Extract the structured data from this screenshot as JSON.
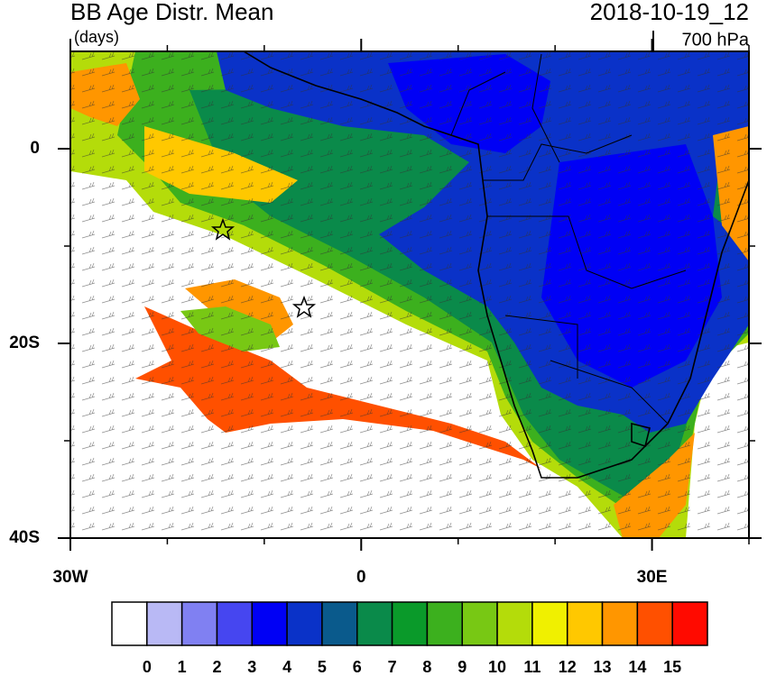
{
  "map": {
    "title": "BB Age Distr. Mean",
    "units_label": "(days)",
    "date": "2018-10-19_12",
    "level": "700 hPa",
    "xlim": [
      -30,
      40
    ],
    "ylim": [
      -40,
      10
    ],
    "xticks": [
      {
        "value": -30,
        "label": "30W"
      },
      0,
      {
        "value": 30,
        "label": "30E"
      }
    ],
    "xticks_minor": [
      -20,
      -10,
      10,
      20,
      40
    ],
    "yticks": [
      0,
      {
        "value": -20,
        "label": "20S"
      },
      {
        "value": -40,
        "label": "40S"
      }
    ],
    "yticks_minor": [
      -10,
      -30
    ],
    "colorbar": {
      "ticks": [
        0,
        1,
        2,
        3,
        4,
        5,
        6,
        7,
        8,
        9,
        10,
        11,
        12,
        13,
        14,
        15
      ],
      "colors": [
        "#ffffff",
        "#b9b9f5",
        "#8080f2",
        "#4646f0",
        "#0000f5",
        "#0a32c8",
        "#0a5a8c",
        "#0a8a4a",
        "#0a9a2a",
        "#3cb01e",
        "#78c814",
        "#b4dc0a",
        "#f0f000",
        "#ffc800",
        "#ff9600",
        "#ff5000",
        "#ff0a00"
      ]
    }
  }
}
